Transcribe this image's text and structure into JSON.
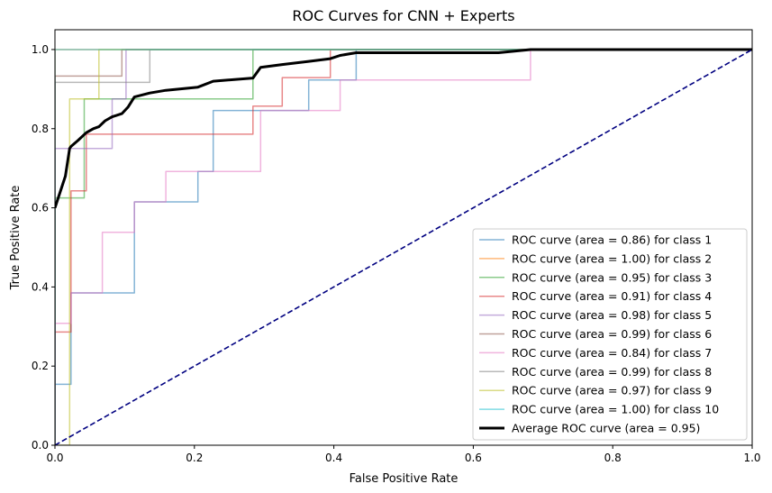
{
  "chart_data": {
    "type": "line",
    "title": "ROC Curves for CNN + Experts",
    "xlabel": "False Positive Rate",
    "ylabel": "True Positive Rate",
    "xlim": [
      0,
      1
    ],
    "ylim": [
      0,
      1.05
    ],
    "xticks": [
      0.0,
      0.2,
      0.4,
      0.6,
      0.8,
      1.0
    ],
    "yticks": [
      0.0,
      0.2,
      0.4,
      0.6,
      0.8,
      1.0
    ],
    "xtick_labels": [
      "0.0",
      "0.2",
      "0.4",
      "0.6",
      "0.8",
      "1.0"
    ],
    "ytick_labels": [
      "0.0",
      "0.2",
      "0.4",
      "0.6",
      "0.8",
      "1.0"
    ],
    "grid": false,
    "legend_position": "lower-right",
    "series": [
      {
        "name": "ROC curve (area = 0.86) for class 1",
        "color": "#1f77b4",
        "x": [
          0,
          0,
          0.023,
          0.023,
          0.114,
          0.114,
          0.205,
          0.205,
          0.227,
          0.227,
          0.364,
          0.364,
          0.432,
          0.432,
          1.0
        ],
        "y": [
          0,
          0.154,
          0.154,
          0.385,
          0.385,
          0.615,
          0.615,
          0.692,
          0.692,
          0.846,
          0.846,
          0.923,
          0.923,
          1.0,
          1.0
        ]
      },
      {
        "name": "ROC curve (area = 1.00) for class 2",
        "color": "#ff7f0e",
        "x": [
          0,
          0,
          1.0
        ],
        "y": [
          0,
          1.0,
          1.0
        ]
      },
      {
        "name": "ROC curve (area = 0.95) for class 3",
        "color": "#2ca02c",
        "x": [
          0,
          0,
          0.042,
          0.042,
          0.063,
          0.063,
          0.284,
          0.284,
          1.0
        ],
        "y": [
          0,
          0.625,
          0.625,
          0.875,
          0.875,
          0.875,
          0.875,
          1.0,
          1.0
        ]
      },
      {
        "name": "ROC curve (area = 0.91) for class 4",
        "color": "#d62728",
        "x": [
          0,
          0,
          0.023,
          0.023,
          0.045,
          0.045,
          0.284,
          0.284,
          0.326,
          0.326,
          0.395,
          0.395,
          1.0
        ],
        "y": [
          0,
          0.286,
          0.286,
          0.643,
          0.643,
          0.786,
          0.786,
          0.857,
          0.857,
          0.929,
          0.929,
          1.0,
          1.0
        ]
      },
      {
        "name": "ROC curve (area = 0.98) for class 5",
        "color": "#9467bd",
        "x": [
          0,
          0,
          0.082,
          0.082,
          0.102,
          0.102,
          1.0
        ],
        "y": [
          0,
          0.75,
          0.75,
          0.875,
          0.875,
          1.0,
          1.0
        ]
      },
      {
        "name": "ROC curve (area = 0.99) for class 6",
        "color": "#8c564b",
        "x": [
          0,
          0,
          0.096,
          0.096,
          1.0
        ],
        "y": [
          0,
          0.933,
          0.933,
          1.0,
          1.0
        ]
      },
      {
        "name": "ROC curve (area = 0.84) for class 7",
        "color": "#e377c2",
        "x": [
          0,
          0,
          0.023,
          0.023,
          0.068,
          0.068,
          0.114,
          0.114,
          0.159,
          0.159,
          0.295,
          0.295,
          0.409,
          0.409,
          0.682,
          0.682,
          1.0
        ],
        "y": [
          0,
          0.308,
          0.308,
          0.385,
          0.385,
          0.538,
          0.538,
          0.615,
          0.615,
          0.692,
          0.692,
          0.846,
          0.846,
          0.923,
          0.923,
          1.0,
          1.0
        ]
      },
      {
        "name": "ROC curve (area = 0.99) for class 8",
        "color": "#7f7f7f",
        "x": [
          0,
          0,
          0.136,
          0.136,
          1.0
        ],
        "y": [
          0,
          0.917,
          0.917,
          1.0,
          1.0
        ]
      },
      {
        "name": "ROC curve (area = 0.97) for class 9",
        "color": "#bcbd22",
        "x": [
          0,
          0.021,
          0.021,
          0.063,
          0.063,
          1.0
        ],
        "y": [
          0,
          0,
          0.875,
          0.875,
          1.0,
          1.0
        ]
      },
      {
        "name": "ROC curve (area = 1.00) for class 10",
        "color": "#17becf",
        "x": [
          0,
          0,
          1.0
        ],
        "y": [
          0,
          1.0,
          1.0
        ]
      },
      {
        "name": "Average ROC curve (area = 0.95)",
        "color": "#000000",
        "x": [
          0,
          0.015,
          0.021,
          0.023,
          0.033,
          0.045,
          0.055,
          0.063,
          0.072,
          0.082,
          0.096,
          0.105,
          0.114,
          0.136,
          0.159,
          0.205,
          0.227,
          0.284,
          0.295,
          0.326,
          0.364,
          0.395,
          0.409,
          0.432,
          0.545,
          0.636,
          0.682,
          1.0
        ],
        "y": [
          0.6,
          0.68,
          0.75,
          0.755,
          0.77,
          0.79,
          0.8,
          0.805,
          0.82,
          0.83,
          0.838,
          0.855,
          0.88,
          0.89,
          0.897,
          0.905,
          0.92,
          0.928,
          0.955,
          0.962,
          0.97,
          0.977,
          0.985,
          0.992,
          0.992,
          0.992,
          1.0,
          1.0
        ]
      }
    ],
    "reference_line": {
      "color": "#000080",
      "x": [
        0,
        1
      ],
      "y": [
        0,
        1
      ]
    }
  }
}
